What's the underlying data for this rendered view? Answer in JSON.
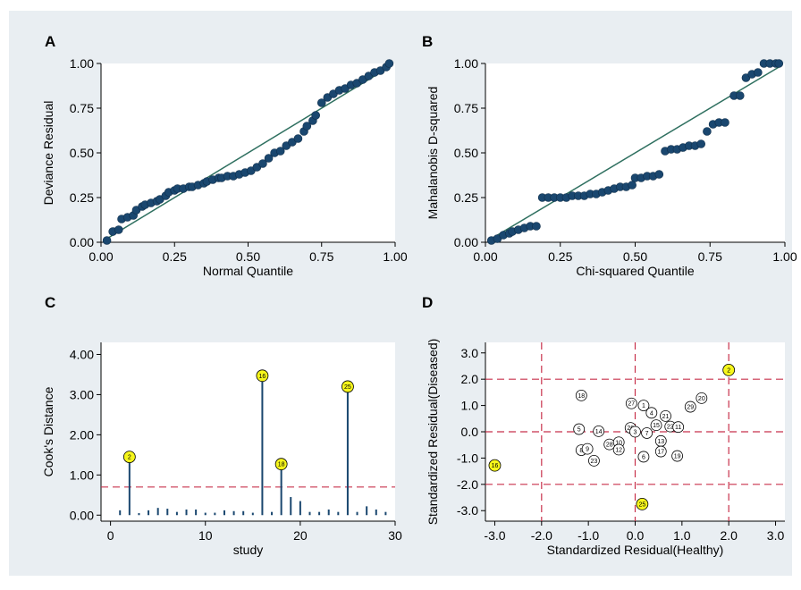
{
  "chart_data": [
    {
      "id": "A",
      "panel_label": "A",
      "type": "scatter",
      "xlabel": "Normal Quantile",
      "ylabel": "Deviance Residual",
      "xlim": [
        0,
        1
      ],
      "ylim": [
        0,
        1
      ],
      "xticks": [
        "0.00",
        "0.25",
        "0.50",
        "0.75",
        "1.00"
      ],
      "yticks": [
        "0.00",
        "0.25",
        "0.50",
        "0.75",
        "1.00"
      ],
      "reference_line": [
        [
          0.02,
          0.02
        ],
        [
          0.98,
          0.98
        ]
      ],
      "points": [
        [
          0.02,
          0.01
        ],
        [
          0.04,
          0.06
        ],
        [
          0.06,
          0.07
        ],
        [
          0.07,
          0.13
        ],
        [
          0.09,
          0.14
        ],
        [
          0.11,
          0.15
        ],
        [
          0.12,
          0.18
        ],
        [
          0.14,
          0.2
        ],
        [
          0.15,
          0.21
        ],
        [
          0.17,
          0.22
        ],
        [
          0.19,
          0.23
        ],
        [
          0.2,
          0.24
        ],
        [
          0.22,
          0.26
        ],
        [
          0.23,
          0.28
        ],
        [
          0.25,
          0.29
        ],
        [
          0.26,
          0.3
        ],
        [
          0.28,
          0.3
        ],
        [
          0.3,
          0.31
        ],
        [
          0.31,
          0.31
        ],
        [
          0.33,
          0.32
        ],
        [
          0.35,
          0.33
        ],
        [
          0.36,
          0.34
        ],
        [
          0.38,
          0.35
        ],
        [
          0.4,
          0.36
        ],
        [
          0.41,
          0.36
        ],
        [
          0.43,
          0.37
        ],
        [
          0.45,
          0.37
        ],
        [
          0.47,
          0.38
        ],
        [
          0.49,
          0.39
        ],
        [
          0.51,
          0.4
        ],
        [
          0.53,
          0.42
        ],
        [
          0.55,
          0.44
        ],
        [
          0.57,
          0.47
        ],
        [
          0.59,
          0.5
        ],
        [
          0.61,
          0.51
        ],
        [
          0.63,
          0.54
        ],
        [
          0.65,
          0.56
        ],
        [
          0.67,
          0.58
        ],
        [
          0.69,
          0.62
        ],
        [
          0.7,
          0.65
        ],
        [
          0.72,
          0.68
        ],
        [
          0.73,
          0.71
        ],
        [
          0.75,
          0.78
        ],
        [
          0.77,
          0.81
        ],
        [
          0.79,
          0.83
        ],
        [
          0.81,
          0.85
        ],
        [
          0.83,
          0.86
        ],
        [
          0.85,
          0.88
        ],
        [
          0.87,
          0.89
        ],
        [
          0.89,
          0.91
        ],
        [
          0.91,
          0.93
        ],
        [
          0.93,
          0.95
        ],
        [
          0.95,
          0.96
        ],
        [
          0.97,
          0.98
        ],
        [
          0.98,
          1.0
        ]
      ]
    },
    {
      "id": "B",
      "panel_label": "B",
      "type": "scatter",
      "xlabel": "Chi-squared Quantile",
      "ylabel": "Mahalanobis D-squared",
      "xlim": [
        0,
        1
      ],
      "ylim": [
        0,
        1
      ],
      "xticks": [
        "0.00",
        "0.25",
        "0.50",
        "0.75",
        "1.00"
      ],
      "yticks": [
        "0.00",
        "0.25",
        "0.50",
        "0.75",
        "1.00"
      ],
      "reference_line": [
        [
          0.02,
          0.02
        ],
        [
          0.98,
          0.98
        ]
      ],
      "points": [
        [
          0.02,
          0.01
        ],
        [
          0.04,
          0.02
        ],
        [
          0.06,
          0.04
        ],
        [
          0.08,
          0.05
        ],
        [
          0.09,
          0.06
        ],
        [
          0.11,
          0.07
        ],
        [
          0.13,
          0.08
        ],
        [
          0.15,
          0.09
        ],
        [
          0.17,
          0.09
        ],
        [
          0.19,
          0.25
        ],
        [
          0.21,
          0.25
        ],
        [
          0.23,
          0.25
        ],
        [
          0.25,
          0.25
        ],
        [
          0.27,
          0.25
        ],
        [
          0.29,
          0.26
        ],
        [
          0.31,
          0.26
        ],
        [
          0.33,
          0.26
        ],
        [
          0.35,
          0.27
        ],
        [
          0.37,
          0.27
        ],
        [
          0.39,
          0.28
        ],
        [
          0.41,
          0.29
        ],
        [
          0.43,
          0.3
        ],
        [
          0.45,
          0.31
        ],
        [
          0.47,
          0.31
        ],
        [
          0.49,
          0.32
        ],
        [
          0.5,
          0.36
        ],
        [
          0.52,
          0.36
        ],
        [
          0.54,
          0.37
        ],
        [
          0.56,
          0.37
        ],
        [
          0.58,
          0.38
        ],
        [
          0.6,
          0.51
        ],
        [
          0.62,
          0.52
        ],
        [
          0.64,
          0.52
        ],
        [
          0.66,
          0.53
        ],
        [
          0.68,
          0.54
        ],
        [
          0.7,
          0.54
        ],
        [
          0.72,
          0.55
        ],
        [
          0.74,
          0.62
        ],
        [
          0.76,
          0.66
        ],
        [
          0.78,
          0.67
        ],
        [
          0.8,
          0.67
        ],
        [
          0.83,
          0.82
        ],
        [
          0.85,
          0.82
        ],
        [
          0.87,
          0.92
        ],
        [
          0.89,
          0.94
        ],
        [
          0.91,
          0.95
        ],
        [
          0.93,
          1.0
        ],
        [
          0.95,
          1.0
        ],
        [
          0.97,
          1.0
        ],
        [
          0.98,
          1.0
        ]
      ]
    },
    {
      "id": "C",
      "panel_label": "C",
      "type": "bar",
      "xlabel": "study",
      "ylabel": "Cook's Distance",
      "xlim": [
        -1,
        30
      ],
      "ylim": [
        -0.15,
        4.3
      ],
      "xticks": [
        "0",
        "10",
        "20",
        "30"
      ],
      "yticks": [
        "0.00",
        "1.00",
        "2.00",
        "3.00",
        "4.00"
      ],
      "threshold": 0.7,
      "x": [
        1,
        2,
        3,
        4,
        5,
        6,
        7,
        8,
        9,
        10,
        11,
        12,
        13,
        14,
        15,
        16,
        17,
        18,
        19,
        20,
        21,
        22,
        23,
        24,
        25,
        26,
        27,
        28,
        29
      ],
      "values": [
        0.12,
        1.45,
        0.05,
        0.12,
        0.18,
        0.16,
        0.08,
        0.14,
        0.14,
        0.06,
        0.06,
        0.12,
        0.1,
        0.1,
        0.06,
        3.47,
        0.08,
        1.27,
        0.45,
        0.35,
        0.08,
        0.08,
        0.14,
        0.08,
        3.2,
        0.08,
        0.22,
        0.14,
        0.08
      ],
      "labeled_points": [
        {
          "study": "2",
          "value": 1.45
        },
        {
          "study": "16",
          "value": 3.47
        },
        {
          "study": "18",
          "value": 1.27
        },
        {
          "study": "25",
          "value": 3.2
        }
      ]
    },
    {
      "id": "D",
      "panel_label": "D",
      "type": "scatter",
      "xlabel": "Standardized Residual(Healthy)",
      "ylabel": "Standardized Residual(Diseased)",
      "xlim": [
        -3.2,
        3.2
      ],
      "ylim": [
        -3.4,
        3.4
      ],
      "xticks": [
        "-3.0",
        "-2.0",
        "-1.0",
        "0.0",
        "1.0",
        "2.0",
        "3.0"
      ],
      "yticks": [
        "-3.0",
        "-2.0",
        "-1.0",
        "0.0",
        "1.0",
        "2.0",
        "3.0"
      ],
      "reference_lines_x": [
        -2,
        0,
        2
      ],
      "reference_lines_y": [
        -2,
        0,
        2
      ],
      "points": [
        {
          "label": "2",
          "x": 2.0,
          "y": 2.35,
          "highlight": true
        },
        {
          "label": "16",
          "x": -3.0,
          "y": -1.28,
          "highlight": true
        },
        {
          "label": "25",
          "x": 0.15,
          "y": -2.75,
          "highlight": true
        },
        {
          "label": "18",
          "x": -1.15,
          "y": 1.38,
          "highlight": false
        },
        {
          "label": "27",
          "x": -0.08,
          "y": 1.08,
          "highlight": false
        },
        {
          "label": "1",
          "x": 0.18,
          "y": 1.0,
          "highlight": false
        },
        {
          "label": "4",
          "x": 0.35,
          "y": 0.72,
          "highlight": false
        },
        {
          "label": "21",
          "x": 0.65,
          "y": 0.6,
          "highlight": false
        },
        {
          "label": "20",
          "x": 1.42,
          "y": 1.28,
          "highlight": false
        },
        {
          "label": "29",
          "x": 1.18,
          "y": 0.95,
          "highlight": false
        },
        {
          "label": "5",
          "x": -1.2,
          "y": 0.1,
          "highlight": false
        },
        {
          "label": "14",
          "x": -0.78,
          "y": 0.02,
          "highlight": false
        },
        {
          "label": "26",
          "x": -0.1,
          "y": 0.15,
          "highlight": false
        },
        {
          "label": "3",
          "x": 0.0,
          "y": 0.0,
          "highlight": false
        },
        {
          "label": "7",
          "x": 0.25,
          "y": -0.05,
          "highlight": false
        },
        {
          "label": "15",
          "x": 0.45,
          "y": 0.25,
          "highlight": false
        },
        {
          "label": "22",
          "x": 0.75,
          "y": 0.2,
          "highlight": false
        },
        {
          "label": "11",
          "x": 0.92,
          "y": 0.18,
          "highlight": false
        },
        {
          "label": "13",
          "x": 0.55,
          "y": -0.35,
          "highlight": false
        },
        {
          "label": "17",
          "x": 0.55,
          "y": -0.75,
          "highlight": false
        },
        {
          "label": "19",
          "x": 0.9,
          "y": -0.92,
          "highlight": false
        },
        {
          "label": "6",
          "x": 0.18,
          "y": -0.95,
          "highlight": false
        },
        {
          "label": "28",
          "x": -0.55,
          "y": -0.48,
          "highlight": false
        },
        {
          "label": "10",
          "x": -0.35,
          "y": -0.4,
          "highlight": false
        },
        {
          "label": "12",
          "x": -0.35,
          "y": -0.68,
          "highlight": false
        },
        {
          "label": "8",
          "x": -1.15,
          "y": -0.7,
          "highlight": false
        },
        {
          "label": "9",
          "x": -1.02,
          "y": -0.65,
          "highlight": false
        },
        {
          "label": "23",
          "x": -0.88,
          "y": -1.1,
          "highlight": false
        }
      ]
    }
  ],
  "colors": {
    "panel_bg": "#e9eef2",
    "plot_bg": "#ffffff",
    "marker": "#1a476f",
    "ref_line": "#2f7060",
    "threshold": "#c8324c",
    "highlight_fill": "#f6f61b"
  }
}
